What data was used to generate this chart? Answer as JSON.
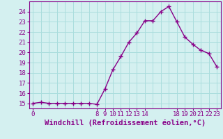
{
  "xlabel": "Windchill (Refroidissement éolien,°C)",
  "background_color": "#d4f0f0",
  "line_color": "#880088",
  "marker_color": "#880088",
  "grid_color": "#aadddd",
  "axis_color": "#880088",
  "hours": [
    0,
    1,
    2,
    3,
    4,
    5,
    6,
    7,
    8,
    9,
    10,
    11,
    12,
    13,
    14,
    15,
    16,
    17,
    18,
    19,
    20,
    21,
    22,
    23
  ],
  "values": [
    15.0,
    15.1,
    15.0,
    15.0,
    15.0,
    15.0,
    15.0,
    15.0,
    14.9,
    16.4,
    18.3,
    19.6,
    21.0,
    21.9,
    23.1,
    23.1,
    24.0,
    24.5,
    23.0,
    21.5,
    20.8,
    20.2,
    19.9,
    18.6
  ],
  "ylim": [
    14.5,
    25.0
  ],
  "xlim": [
    -0.5,
    23.5
  ],
  "yticks": [
    15,
    16,
    17,
    18,
    19,
    20,
    21,
    22,
    23,
    24
  ],
  "ytick_labels": [
    "15",
    "16",
    "17",
    "18",
    "19",
    "20",
    "21",
    "22",
    "23",
    "24"
  ],
  "xtick_positions": [
    0,
    8,
    9,
    10,
    11,
    12,
    13,
    14,
    18,
    19,
    20,
    21,
    22,
    23
  ],
  "xtick_labels": [
    "0",
    "8",
    "9",
    "10",
    "11",
    "12",
    "13",
    "14",
    "18",
    "19",
    "20",
    "21",
    "22",
    "23"
  ],
  "all_grid_x": [
    0,
    1,
    2,
    3,
    4,
    5,
    6,
    7,
    8,
    9,
    10,
    11,
    12,
    13,
    14,
    15,
    16,
    17,
    18,
    19,
    20,
    21,
    22,
    23
  ],
  "fontsize": 6.5,
  "xlabel_fontsize": 7.5
}
